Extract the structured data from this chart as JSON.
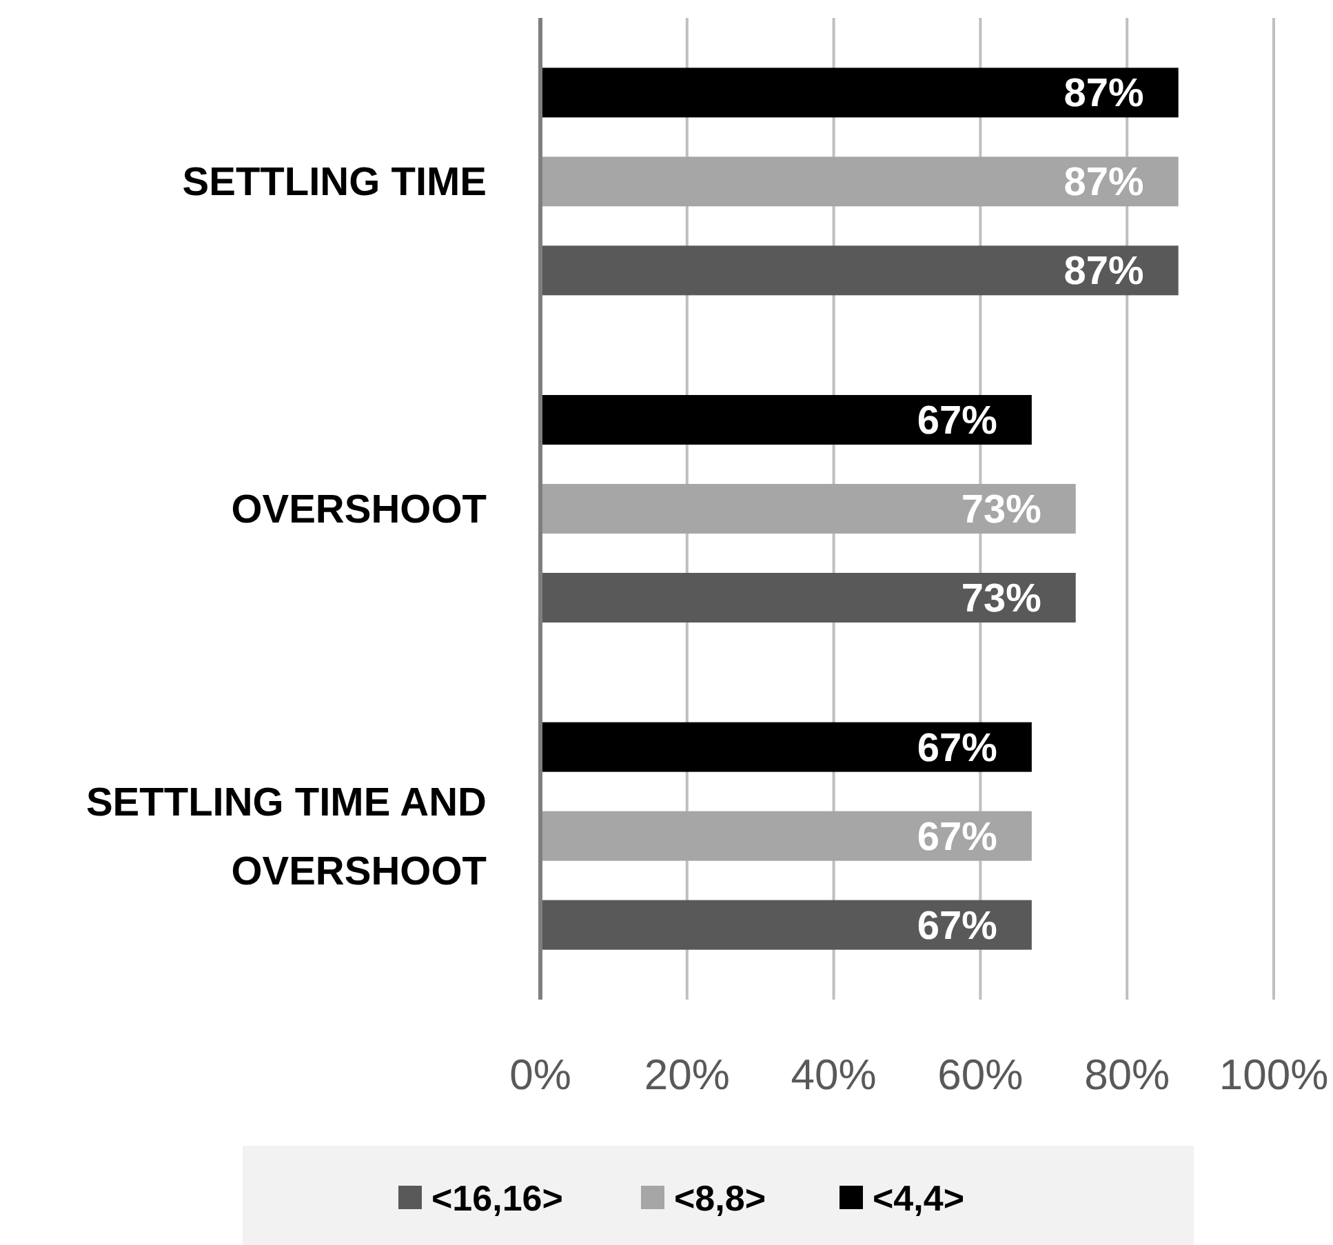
{
  "chart_data": {
    "type": "bar",
    "orientation": "horizontal",
    "categories": [
      "SETTLING TIME",
      "OVERSHOOT",
      "SETTLING TIME AND OVERSHOOT"
    ],
    "series": [
      {
        "name": "<16,16>",
        "color": "#595959",
        "values": [
          87,
          73,
          67
        ],
        "value_labels": [
          "87%",
          "73%",
          "67%"
        ]
      },
      {
        "name": "<8,8>",
        "color": "#a6a6a6",
        "values": [
          87,
          73,
          67
        ],
        "value_labels": [
          "87%",
          "73%",
          "67%"
        ]
      },
      {
        "name": "<4,4>",
        "color": "#000000",
        "values": [
          87,
          67,
          67
        ],
        "value_labels": [
          "87%",
          "67%",
          "67%"
        ]
      }
    ],
    "xlim": [
      0,
      100
    ],
    "xticks": [
      {
        "value": 0,
        "label": "0%"
      },
      {
        "value": 20,
        "label": "20%"
      },
      {
        "value": 40,
        "label": "40%"
      },
      {
        "value": 60,
        "label": "60%"
      },
      {
        "value": 80,
        "label": "80%"
      },
      {
        "value": 100,
        "label": "100%"
      }
    ],
    "grid": "x",
    "legend": "bottom"
  }
}
